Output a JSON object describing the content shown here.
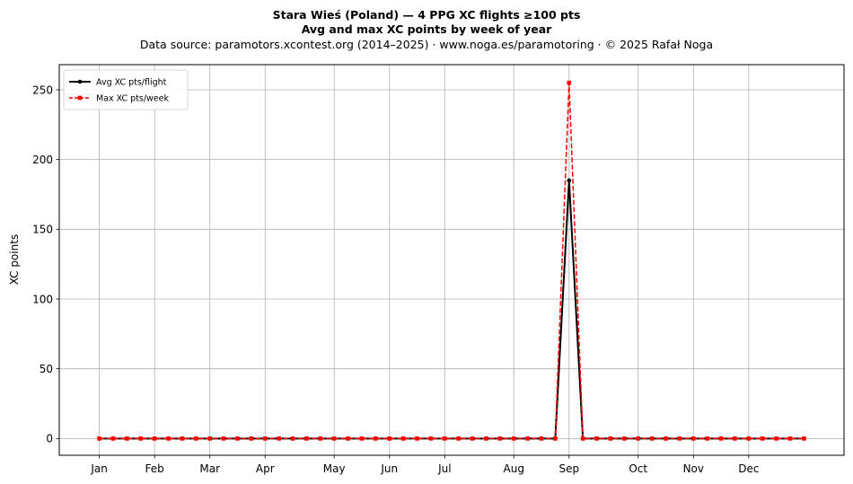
{
  "header": {
    "title": "Stara Wieś (Poland)  —  4 PPG XC flights ≥100 pts",
    "subtitle": "Avg and max XC points by week of year",
    "source": "Data source: paramotors.xcontest.org (2014–2025)  ·  www.noga.es/paramotoring  ·  © 2025 Rafał Noga"
  },
  "chart_data": {
    "type": "line",
    "ylabel": "XC points",
    "xlabel": "",
    "ylim": [
      -12,
      268
    ],
    "xlim": [
      -1.9,
      54.9
    ],
    "yticks": [
      0,
      50,
      100,
      150,
      200,
      250
    ],
    "month_ticks": [
      {
        "label": "Jan",
        "week": 1
      },
      {
        "label": "Feb",
        "week": 5
      },
      {
        "label": "Mar",
        "week": 9
      },
      {
        "label": "Apr",
        "week": 13
      },
      {
        "label": "May",
        "week": 18
      },
      {
        "label": "Jun",
        "week": 22
      },
      {
        "label": "Jul",
        "week": 26
      },
      {
        "label": "Aug",
        "week": 31
      },
      {
        "label": "Sep",
        "week": 35
      },
      {
        "label": "Oct",
        "week": 40
      },
      {
        "label": "Nov",
        "week": 44
      },
      {
        "label": "Dec",
        "week": 48
      }
    ],
    "grid": true,
    "legend_position": "top-left",
    "x": [
      1,
      2,
      3,
      4,
      5,
      6,
      7,
      8,
      9,
      10,
      11,
      12,
      13,
      14,
      15,
      16,
      17,
      18,
      19,
      20,
      21,
      22,
      23,
      24,
      25,
      26,
      27,
      28,
      29,
      30,
      31,
      32,
      33,
      34,
      35,
      36,
      37,
      38,
      39,
      40,
      41,
      42,
      43,
      44,
      45,
      46,
      47,
      48,
      49,
      50,
      51,
      52
    ],
    "series": [
      {
        "name": "Avg XC pts/flight",
        "color": "#000000",
        "style": "solid-circle",
        "values": [
          0,
          0,
          0,
          0,
          0,
          0,
          0,
          0,
          0,
          0,
          0,
          0,
          0,
          0,
          0,
          0,
          0,
          0,
          0,
          0,
          0,
          0,
          0,
          0,
          0,
          0,
          0,
          0,
          0,
          0,
          0,
          0,
          0,
          0,
          185,
          0,
          0,
          0,
          0,
          0,
          0,
          0,
          0,
          0,
          0,
          0,
          0,
          0,
          0,
          0,
          0,
          0
        ]
      },
      {
        "name": "Max XC pts/week",
        "color": "#ff0000",
        "style": "dashed-square",
        "values": [
          0,
          0,
          0,
          0,
          0,
          0,
          0,
          0,
          0,
          0,
          0,
          0,
          0,
          0,
          0,
          0,
          0,
          0,
          0,
          0,
          0,
          0,
          0,
          0,
          0,
          0,
          0,
          0,
          0,
          0,
          0,
          0,
          0,
          0,
          255,
          0,
          0,
          0,
          0,
          0,
          0,
          0,
          0,
          0,
          0,
          0,
          0,
          0,
          0,
          0,
          0,
          0
        ]
      }
    ]
  }
}
